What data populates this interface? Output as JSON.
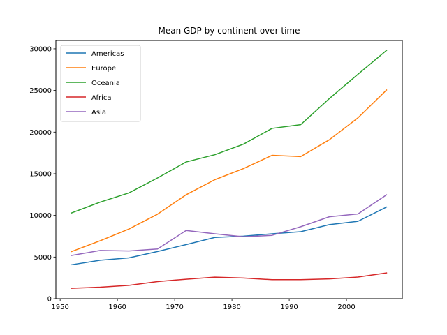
{
  "chart_data": {
    "type": "line",
    "title": "Mean GDP by continent over time",
    "xlabel": "",
    "ylabel": "",
    "xlim": [
      1949.25,
      2009.75
    ],
    "ylim": [
      0,
      31000
    ],
    "grid": false,
    "legend_position": "top-left",
    "x_ticks": [
      1950,
      1960,
      1970,
      1980,
      1990,
      2000
    ],
    "y_ticks": [
      0,
      5000,
      10000,
      15000,
      20000,
      25000,
      30000
    ],
    "x": [
      1952,
      1957,
      1962,
      1967,
      1972,
      1977,
      1982,
      1987,
      1992,
      1997,
      2002,
      2007
    ],
    "series": [
      {
        "name": "Americas",
        "color": "#1f77b4",
        "values": [
          4079,
          4616,
          4902,
          5668,
          6491,
          7352,
          7507,
          7793,
          8045,
          8889,
          9288,
          11003
        ]
      },
      {
        "name": "Europe",
        "color": "#ff7f0e",
        "values": [
          5661,
          6963,
          8365,
          10144,
          12480,
          14284,
          15618,
          17214,
          17062,
          19077,
          21712,
          25054
        ]
      },
      {
        "name": "Oceania",
        "color": "#2ca02c",
        "values": [
          10298,
          11599,
          12696,
          14495,
          16417,
          17284,
          18555,
          20448,
          20894,
          24024,
          26939,
          29810
        ]
      },
      {
        "name": "Africa",
        "color": "#d62728",
        "values": [
          1253,
          1385,
          1598,
          2050,
          2340,
          2586,
          2482,
          2283,
          2282,
          2379,
          2599,
          3089
        ]
      },
      {
        "name": "Asia",
        "color": "#9467bd",
        "values": [
          5195,
          5788,
          5729,
          5971,
          8187,
          7791,
          7434,
          7608,
          8640,
          9834,
          10174,
          12473
        ]
      }
    ]
  }
}
